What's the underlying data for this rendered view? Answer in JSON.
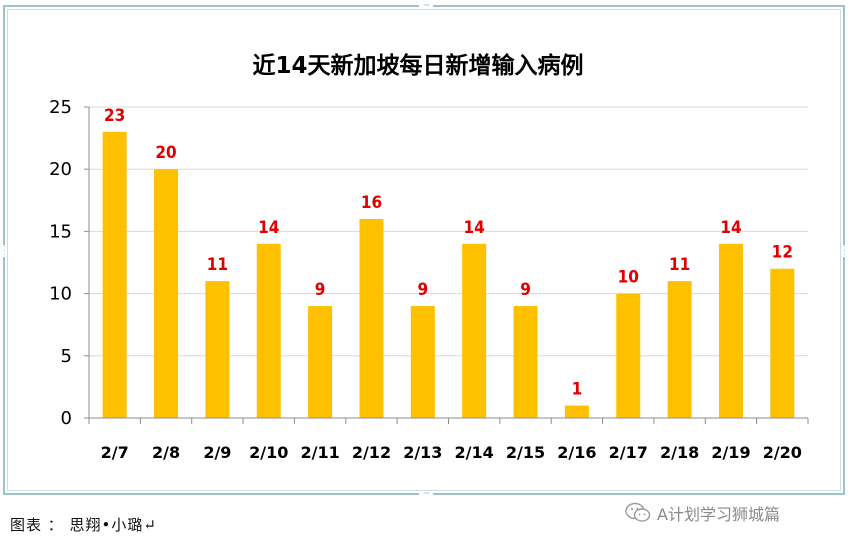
{
  "chart_data": {
    "type": "bar",
    "title": "近14天新加坡每日新增输入病例",
    "categories": [
      "2/7",
      "2/8",
      "2/9",
      "2/10",
      "2/11",
      "2/12",
      "2/13",
      "2/14",
      "2/15",
      "2/16",
      "2/17",
      "2/18",
      "2/19",
      "2/20"
    ],
    "values": [
      23,
      20,
      11,
      14,
      9,
      16,
      9,
      14,
      9,
      1,
      10,
      11,
      14,
      12
    ],
    "y_ticks": [
      0,
      5,
      10,
      15,
      20,
      25
    ],
    "ylim": [
      0,
      25
    ],
    "grid": true,
    "bar_color": "#ffc000",
    "label_color": "#e00000"
  },
  "caption": "图表 ： 思翔•小璐↵",
  "watermark": {
    "text": "A计划学习狮城篇",
    "icon": "wechat-icon"
  }
}
